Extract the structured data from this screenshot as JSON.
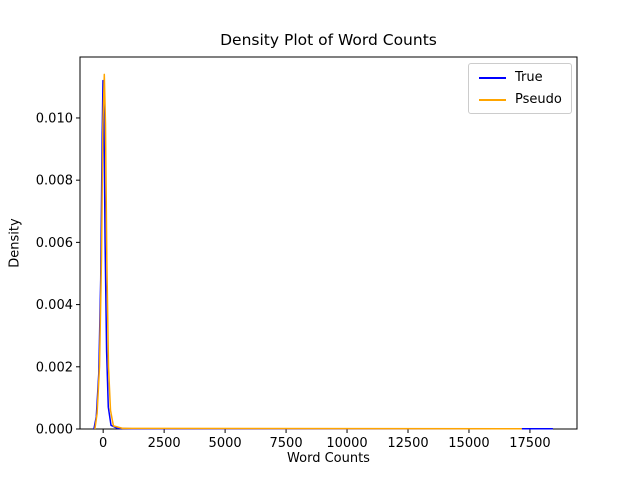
{
  "figure": {
    "background": "#ffffff",
    "frame_color": "#000000"
  },
  "chart_data": {
    "type": "line",
    "subtype": "kde-density",
    "title": "Density Plot of Word Counts",
    "xlabel": "Word Counts",
    "ylabel": "Density",
    "xlim": [
      -950,
      19430
    ],
    "ylim": [
      0,
      0.01196
    ],
    "x_ticks": [
      0,
      2500,
      5000,
      7500,
      10000,
      12500,
      15000,
      17500
    ],
    "y_ticks": [
      0,
      0.002,
      0.004,
      0.006,
      0.008,
      0.01
    ],
    "y_tick_decimals": 3,
    "grid": false,
    "legend_position": "upper right",
    "series": [
      {
        "name": "True",
        "color": "#0000ff",
        "peak": {
          "x": 0,
          "density": 0.0112
        },
        "x_end": 18440,
        "points": [
          [
            -380,
            0
          ],
          [
            -280,
            0.0004
          ],
          [
            -180,
            0.0018
          ],
          [
            -100,
            0.0048
          ],
          [
            -40,
            0.0095
          ],
          [
            -5,
            0.0112
          ],
          [
            30,
            0.0102
          ],
          [
            80,
            0.006
          ],
          [
            140,
            0.0025
          ],
          [
            210,
            0.0007
          ],
          [
            320,
            0.00012
          ],
          [
            600,
            2e-05
          ],
          [
            1200,
            5e-06
          ],
          [
            18440,
            5e-06
          ]
        ]
      },
      {
        "name": "Pseudo",
        "color": "#ffa500",
        "peak": {
          "x": 45,
          "density": 0.0114
        },
        "x_end": 17170,
        "points": [
          [
            -340,
            0
          ],
          [
            -250,
            0.0005
          ],
          [
            -150,
            0.002
          ],
          [
            -70,
            0.0055
          ],
          [
            -10,
            0.0098
          ],
          [
            45,
            0.0114
          ],
          [
            95,
            0.0098
          ],
          [
            150,
            0.0055
          ],
          [
            220,
            0.002
          ],
          [
            300,
            0.0006
          ],
          [
            420,
            0.0001
          ],
          [
            800,
            2e-05
          ],
          [
            17170,
            5e-06
          ]
        ]
      }
    ]
  }
}
